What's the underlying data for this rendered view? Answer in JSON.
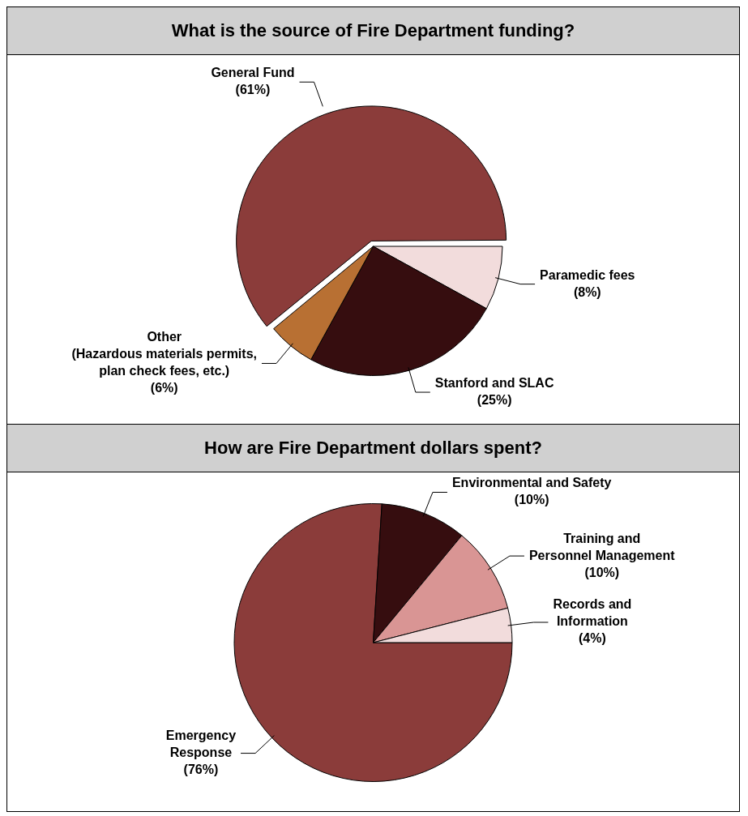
{
  "chart_data": [
    {
      "type": "pie",
      "title": "What is the source of Fire Department funding?",
      "categories": [
        "Paramedic fees",
        "Stanford and SLAC",
        "Other\n(Hazardous materials permits,\nplan check fees, etc.)",
        "General Fund"
      ],
      "values": [
        8,
        25,
        6,
        61
      ],
      "colors": [
        "#f2dcdc",
        "#360d0f",
        "#b87033",
        "#8b3c3a"
      ],
      "value_labels": [
        "(8%)",
        "(25%)",
        "(6%)",
        "(61%)"
      ]
    },
    {
      "type": "pie",
      "title": "How are Fire Department dollars spent?",
      "categories": [
        "Emergency\nResponse",
        "Environmental and Safety",
        "Training and\nPersonnel Management",
        "Records and\nInformation"
      ],
      "values": [
        76,
        10,
        10,
        4
      ],
      "colors": [
        "#8b3c3a",
        "#360d0f",
        "#d99594",
        "#f2dcdc"
      ],
      "value_labels": [
        "(76%)",
        "(10%)",
        "(10%)",
        "(4%)"
      ]
    }
  ]
}
